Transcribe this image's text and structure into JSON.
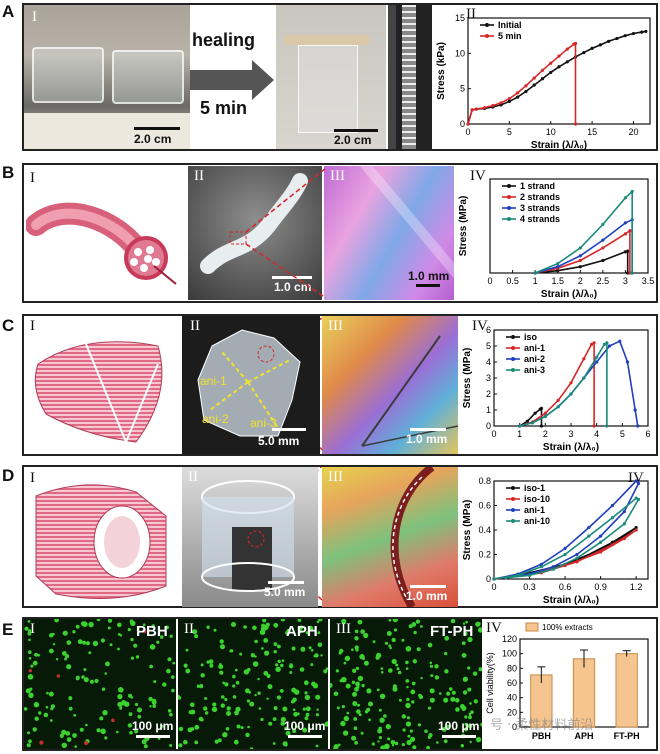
{
  "panels": {
    "A": {
      "letter": "A",
      "roman1": "I",
      "roman2": "II",
      "arrow_top": "healing",
      "arrow_bottom": "5 min",
      "scale_left": "2.0 cm",
      "scale_right": "2.0 cm"
    },
    "B": {
      "letter": "B",
      "roman1": "I",
      "roman2": "II",
      "roman3": "III",
      "roman4": "IV",
      "scale2": "1.0 cm",
      "scale3": "1.0 mm"
    },
    "C": {
      "letter": "C",
      "roman1": "I",
      "roman2": "II",
      "roman3": "III",
      "roman4": "IV",
      "scale2": "5.0 mm",
      "scale3": "1.0 mm",
      "photo_labels": [
        "ani-1",
        "ani-2",
        "ani-3"
      ]
    },
    "D": {
      "letter": "D",
      "roman1": "I",
      "roman2": "II",
      "roman3": "III",
      "roman4": "IV",
      "scale2": "5.0 mm",
      "scale3": "1.0 mm"
    },
    "E": {
      "letter": "E",
      "roman1": "I",
      "roman2": "II",
      "roman3": "III",
      "roman4": "IV",
      "name1": "PBH",
      "name2": "APH",
      "name3": "FT-PH",
      "scale": "100 μm"
    }
  },
  "watermark": "号 · 柔性材料前沿",
  "colors": {
    "black": "#111111",
    "red": "#d62728",
    "blue": "#1f3fbf",
    "teal": "#1a8a7a",
    "bar": "#f6c58f"
  },
  "chart_data": [
    {
      "id": "A-II",
      "type": "line",
      "xlabel": "Strain (λ/λ₀)",
      "ylabel": "Stress (kPa)",
      "xlim": [
        0,
        22
      ],
      "ylim": [
        0,
        15
      ],
      "xticks": [
        0,
        5,
        10,
        15,
        20
      ],
      "yticks": [
        0,
        5,
        10,
        15
      ],
      "series": [
        {
          "name": "Initial",
          "color": "#111111",
          "x": [
            0,
            0.5,
            1,
            2,
            3,
            4,
            5,
            6,
            7,
            8,
            9,
            10,
            11,
            12,
            13,
            14,
            15,
            16,
            17,
            18,
            19,
            20,
            21,
            21.5
          ],
          "y": [
            0,
            2,
            2.1,
            2.2,
            2.4,
            2.7,
            3.2,
            3.8,
            4.6,
            5.5,
            6.4,
            7.3,
            8.1,
            8.8,
            9.5,
            10.1,
            10.7,
            11.2,
            11.7,
            12.1,
            12.5,
            12.8,
            13.0,
            13.1
          ]
        },
        {
          "name": "5 min",
          "color": "#d62728",
          "x": [
            0,
            0.5,
            1,
            2,
            3,
            4,
            5,
            6,
            7,
            8,
            9,
            10,
            11,
            12,
            12.8,
            13,
            13
          ],
          "y": [
            0,
            2,
            2.1,
            2.3,
            2.6,
            3.0,
            3.6,
            4.4,
            5.4,
            6.5,
            7.6,
            8.6,
            9.6,
            10.6,
            11.3,
            11.4,
            0
          ]
        }
      ]
    },
    {
      "id": "B-IV",
      "type": "line",
      "xlabel": "Strain (λ/λ₀)",
      "ylabel": "Stress (MPa)",
      "xlim": [
        0,
        3.5
      ],
      "ylim": [
        0,
        6
      ],
      "xticks": [
        0,
        0.5,
        1,
        1.5,
        2,
        2.5,
        3,
        3.5
      ],
      "yticks": [],
      "series": [
        {
          "name": "1 strand",
          "color": "#111111",
          "x": [
            1,
            1.5,
            2,
            2.5,
            3,
            3.05,
            3.05
          ],
          "y": [
            0,
            0.15,
            0.4,
            0.8,
            1.35,
            1.4,
            0
          ]
        },
        {
          "name": "2 strands",
          "color": "#d62728",
          "x": [
            1,
            1.5,
            2,
            2.5,
            3,
            3.1,
            3.1
          ],
          "y": [
            0,
            0.3,
            0.8,
            1.6,
            2.5,
            2.7,
            0
          ]
        },
        {
          "name": "3 strands",
          "color": "#1f3fbf",
          "x": [
            1,
            1.5,
            2,
            2.5,
            3,
            3.15,
            3.15
          ],
          "y": [
            0,
            0.4,
            1.1,
            2.1,
            3.2,
            3.4,
            0
          ]
        },
        {
          "name": "4 strands",
          "color": "#1a8a7a",
          "x": [
            1,
            1.5,
            2,
            2.5,
            3,
            3.15,
            3.15
          ],
          "y": [
            0,
            0.6,
            1.6,
            3.1,
            4.8,
            5.2,
            0
          ]
        }
      ]
    },
    {
      "id": "C-IV",
      "type": "line",
      "xlabel": "Strain (λ/λ₀)",
      "ylabel": "Stress (MPa)",
      "xlim": [
        0,
        6
      ],
      "ylim": [
        0,
        6
      ],
      "xticks": [
        0,
        1,
        2,
        3,
        4,
        5,
        6
      ],
      "yticks": [
        0,
        1,
        2,
        3,
        4,
        5,
        6
      ],
      "series": [
        {
          "name": "iso",
          "color": "#111111",
          "x": [
            1,
            1.3,
            1.6,
            1.8,
            1.85,
            1.85
          ],
          "y": [
            0,
            0.3,
            0.8,
            1.05,
            1.1,
            0
          ]
        },
        {
          "name": "ani-1",
          "color": "#d62728",
          "x": [
            1,
            1.5,
            2,
            2.5,
            3,
            3.5,
            3.8,
            3.9,
            3.9
          ],
          "y": [
            0,
            0.25,
            0.8,
            1.6,
            2.7,
            4.2,
            5.1,
            5.2,
            0
          ]
        },
        {
          "name": "ani-2",
          "color": "#1f3fbf",
          "x": [
            1,
            1.5,
            2,
            2.5,
            3,
            3.5,
            4,
            4.5,
            4.9,
            5.2,
            5.5,
            5.6
          ],
          "y": [
            0,
            0.2,
            0.6,
            1.2,
            2.0,
            3.0,
            4.0,
            5.0,
            5.3,
            4.0,
            1.0,
            0
          ]
        },
        {
          "name": "ani-3",
          "color": "#1a8a7a",
          "x": [
            1,
            1.5,
            2,
            2.5,
            3,
            3.5,
            4,
            4.3,
            4.4,
            4.4
          ],
          "y": [
            0,
            0.2,
            0.6,
            1.2,
            2.0,
            3.0,
            4.3,
            5.1,
            5.2,
            0
          ]
        }
      ]
    },
    {
      "id": "D-IV",
      "type": "line",
      "xlabel": "Strain (λ/λ₀)",
      "ylabel": "Stress (MPa)",
      "xlim": [
        0,
        1.3
      ],
      "ylim": [
        0,
        0.8
      ],
      "xticks": [
        0,
        0.3,
        0.6,
        0.9,
        1.2
      ],
      "yticks": [
        0,
        0.2,
        0.4,
        0.6,
        0.8
      ],
      "series": [
        {
          "name": "iso-1",
          "color": "#111111",
          "x": [
            0,
            0.3,
            0.6,
            0.9,
            1.1,
            1.2,
            1.0,
            0.7,
            0.4,
            0.1
          ],
          "y": [
            0,
            0.05,
            0.12,
            0.24,
            0.35,
            0.42,
            0.3,
            0.15,
            0.06,
            0.01
          ]
        },
        {
          "name": "iso-10",
          "color": "#d62728",
          "x": [
            0,
            0.3,
            0.6,
            0.9,
            1.1,
            1.2,
            1.0,
            0.7,
            0.4,
            0.1
          ],
          "y": [
            0,
            0.04,
            0.11,
            0.22,
            0.33,
            0.4,
            0.28,
            0.14,
            0.05,
            0.01
          ]
        },
        {
          "name": "ani-1",
          "color": "#1f3fbf",
          "x": [
            0,
            0.2,
            0.4,
            0.6,
            0.8,
            1.0,
            1.2,
            1.22,
            1.1,
            0.9,
            0.7,
            0.5,
            0.3,
            0.1
          ],
          "y": [
            0,
            0.04,
            0.12,
            0.25,
            0.42,
            0.6,
            0.8,
            0.78,
            0.55,
            0.35,
            0.2,
            0.1,
            0.04,
            0.01
          ]
        },
        {
          "name": "ani-10",
          "color": "#1a8a7a",
          "x": [
            0,
            0.2,
            0.4,
            0.6,
            0.8,
            1.0,
            1.2,
            1.22,
            1.1,
            0.9,
            0.7,
            0.5,
            0.3,
            0.1
          ],
          "y": [
            0,
            0.03,
            0.1,
            0.2,
            0.35,
            0.5,
            0.66,
            0.65,
            0.45,
            0.3,
            0.17,
            0.08,
            0.03,
            0.01
          ]
        }
      ]
    },
    {
      "id": "E-IV",
      "type": "bar",
      "title": "",
      "xlabel": "",
      "ylabel": "Cell viability(%)",
      "legend": "100% extracts",
      "categories": [
        "PBH",
        "APH",
        "FT-PH"
      ],
      "values": [
        71,
        93,
        100
      ],
      "errors": [
        11,
        12,
        4
      ],
      "ylim": [
        0,
        120
      ],
      "yticks": [
        0,
        20,
        40,
        60,
        80,
        100,
        120
      ]
    }
  ]
}
